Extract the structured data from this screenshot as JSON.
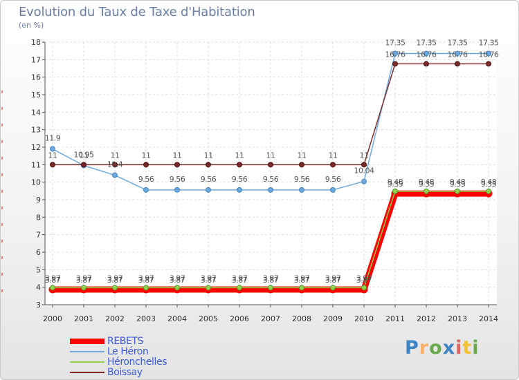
{
  "header": {
    "title": "Evolution du Taux de Taxe d'Habitation",
    "unit": "(en %)"
  },
  "chart_data": {
    "type": "line",
    "title": "Evolution du Taux de Taxe d'Habitation",
    "ylabel": "(en %)",
    "xlabel": "",
    "ylim": [
      3,
      18
    ],
    "y_ticks": [
      3,
      4,
      5,
      6,
      7,
      8,
      9,
      10,
      11,
      12,
      13,
      14,
      15,
      16,
      17,
      18
    ],
    "grid": true,
    "legend_position": "bottom-left",
    "x": [
      "2000",
      "2001",
      "2002",
      "2003",
      "2004",
      "2005",
      "2006",
      "2007",
      "2008",
      "2009",
      "2010",
      "2011",
      "2012",
      "2013",
      "2014"
    ],
    "series": [
      {
        "name": "REBETS",
        "color": "#ff0000",
        "values": [
          3.87,
          3.87,
          3.87,
          3.87,
          3.87,
          3.87,
          3.87,
          3.87,
          3.87,
          3.87,
          3.87,
          9.35,
          9.35,
          9.35,
          9.35
        ],
        "labels": [
          "3.87",
          "3.87",
          "3.87",
          "3.87",
          "3.87",
          "3.87",
          "3.87",
          "3.87",
          "3.87",
          "3.87",
          "3.87",
          "9.35",
          "9.35",
          "9.35",
          "9.35"
        ]
      },
      {
        "name": "Le Héron",
        "color": "#6fa8dc",
        "values": [
          11.9,
          10.95,
          10.4,
          9.56,
          9.56,
          9.56,
          9.56,
          9.56,
          9.56,
          9.56,
          10.04,
          17.35,
          17.35,
          17.35,
          17.35
        ],
        "labels": [
          "11.9",
          "10.95",
          "10.4",
          "9.56",
          "9.56",
          "9.56",
          "9.56",
          "9.56",
          "9.56",
          "9.56",
          "10.04",
          "17.35",
          "17.35",
          "17.35",
          "17.35"
        ]
      },
      {
        "name": "Héronchelles",
        "color": "#8fd14f",
        "values": [
          3.97,
          3.97,
          3.97,
          3.97,
          3.97,
          3.97,
          3.97,
          3.97,
          3.97,
          3.97,
          3.97,
          9.48,
          9.48,
          9.48,
          9.48
        ],
        "labels": [
          "3.97",
          "3.97",
          "3.97",
          "3.97",
          "3.97",
          "3.97",
          "3.97",
          "3.97",
          "3.97",
          "3.97",
          "3.97",
          "9.48",
          "9.48",
          "9.48",
          "9.48"
        ]
      },
      {
        "name": "Boissay",
        "color": "#7a2a2a",
        "values": [
          11,
          11,
          11,
          11,
          11,
          11,
          11,
          11,
          11,
          11,
          11,
          16.76,
          16.76,
          16.76,
          16.76
        ],
        "labels": [
          "11",
          "11",
          "11",
          "11",
          "11",
          "11",
          "11",
          "11",
          "11",
          "11",
          "11",
          "16.76",
          "16.76",
          "16.76",
          "16.76"
        ]
      }
    ]
  },
  "legend": {
    "items": [
      {
        "label": "REBETS",
        "color": "#ff0000"
      },
      {
        "label": "Le Héron",
        "color": "#6fa8dc"
      },
      {
        "label": "Héronchelles",
        "color": "#8fd14f"
      },
      {
        "label": "Boissay",
        "color": "#7a2a2a"
      }
    ]
  },
  "brand": {
    "letters": [
      "P",
      "r",
      "o",
      "x",
      "i",
      "t",
      "i"
    ],
    "colors": [
      "#3d85c6",
      "#f6b26b",
      "#6aa84f",
      "#3d85c6",
      "#e06666",
      "#f1c232",
      "#6aa84f"
    ]
  }
}
